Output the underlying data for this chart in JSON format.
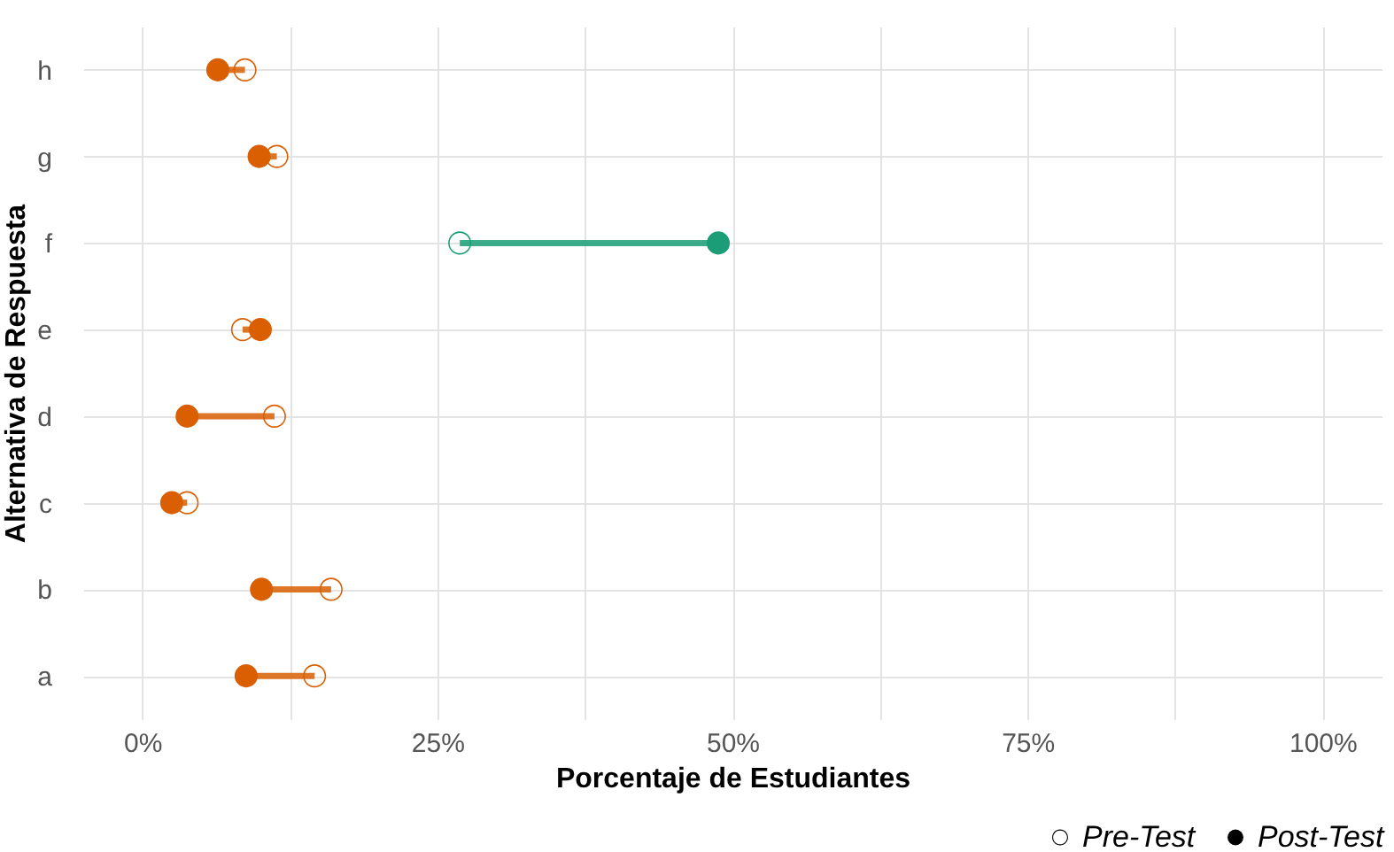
{
  "chart_data": {
    "type": "scatter",
    "orientation": "horizontal",
    "xlabel": "Porcentaje de Estudiantes",
    "ylabel": "Alternativa de Respuesta",
    "categories": [
      "h",
      "g",
      "f",
      "e",
      "d",
      "c",
      "b",
      "a"
    ],
    "series": [
      {
        "name": "Pre-Test",
        "colors": [
          "#d95f02",
          "#d95f02",
          "#1b9e77",
          "#d95f02",
          "#d95f02",
          "#d95f02",
          "#d95f02",
          "#d95f02"
        ],
        "values": [
          8.7,
          11.4,
          26.9,
          8.5,
          11.2,
          3.8,
          16.0,
          14.6
        ]
      },
      {
        "name": "Post-Test",
        "colors": [
          "#d95f02",
          "#d95f02",
          "#1b9e77",
          "#d95f02",
          "#d95f02",
          "#d95f02",
          "#d95f02",
          "#d95f02"
        ],
        "values": [
          6.4,
          9.9,
          48.8,
          10.0,
          3.8,
          2.5,
          10.1,
          8.8
        ]
      }
    ],
    "xlim": [
      -5,
      105
    ],
    "xticks": [
      {
        "value": 0,
        "label": "0%"
      },
      {
        "value": 12.5,
        "label": null
      },
      {
        "value": 25,
        "label": "25%"
      },
      {
        "value": 37.5,
        "label": null
      },
      {
        "value": 50,
        "label": "50%"
      },
      {
        "value": 62.5,
        "label": null
      },
      {
        "value": 75,
        "label": "75%"
      },
      {
        "value": 87.5,
        "label": null
      },
      {
        "value": 100,
        "label": "100%"
      }
    ],
    "grid": true,
    "legend": "bottom right",
    "marker": "circle"
  }
}
